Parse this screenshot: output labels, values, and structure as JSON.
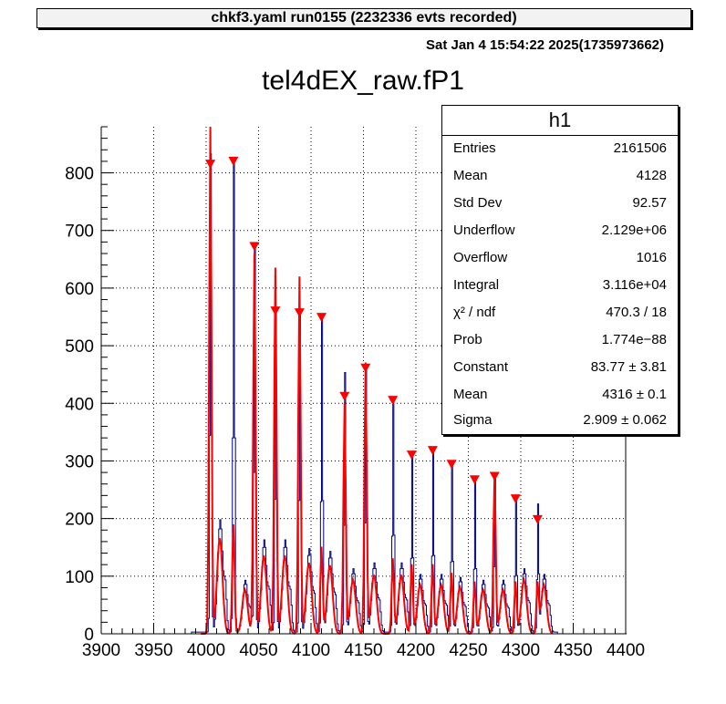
{
  "header": {
    "banner": "chkf3.yaml  run0155 (2232336 evts recorded)",
    "timestamp": "Sat Jan  4 15:54:22 2025(1735973662)"
  },
  "stats": {
    "title": "h1",
    "rows": [
      {
        "label": "Entries",
        "value": "2161506"
      },
      {
        "label": "Mean",
        "value": "4128"
      },
      {
        "label": "Std Dev",
        "value": "92.57"
      },
      {
        "label": "Underflow",
        "value": "2.129e+06"
      },
      {
        "label": "Overflow",
        "value": "1016"
      },
      {
        "label": "Integral",
        "value": "3.116e+04"
      },
      {
        "label": "χ² / ndf",
        "value": "470.3 / 18"
      },
      {
        "label": "Prob",
        "value": "1.774e−88"
      },
      {
        "label": "Constant",
        "value": "83.77   ± 3.81"
      },
      {
        "label": "Mean",
        "value": "4316   ± 0.1"
      },
      {
        "label": "Sigma",
        "value": "2.909   ± 0.062"
      }
    ]
  },
  "chart_data": {
    "type": "line",
    "title": "tel4dEX_raw.fP1",
    "xlabel": "",
    "ylabel": "",
    "xlim": [
      3900,
      4400
    ],
    "ylim": [
      0,
      880
    ],
    "xticks": [
      "3900",
      "3950",
      "4000",
      "4050",
      "4100",
      "4150",
      "4200",
      "4250",
      "4300",
      "4350",
      "4400"
    ],
    "yticks": [
      "0",
      "100",
      "200",
      "300",
      "400",
      "500",
      "600",
      "700",
      "800"
    ],
    "grid": true,
    "colors": {
      "histogram": "#000080",
      "fit": "#ff0000",
      "markers": "#ff0000"
    },
    "peaks": [
      {
        "x": 4004,
        "blue": 830,
        "red": 880,
        "bump_x": 4013,
        "bump": 195
      },
      {
        "x": 4026,
        "blue": 820,
        "red": 190,
        "bump_x": 4037,
        "bump": 90
      },
      {
        "x": 4046,
        "blue": 670,
        "red": 660,
        "bump_x": 4055,
        "bump": 160
      },
      {
        "x": 4066,
        "blue": 560,
        "red": 635,
        "bump_x": 4075,
        "bump": 160
      },
      {
        "x": 4089,
        "blue": 555,
        "red": 620,
        "bump_x": 4098,
        "bump": 145
      },
      {
        "x": 4110,
        "blue": 550,
        "red": 150,
        "bump_x": 4118,
        "bump": 140
      },
      {
        "x": 4132,
        "blue": 450,
        "red": 400,
        "bump_x": 4140,
        "bump": 110
      },
      {
        "x": 4152,
        "blue": 460,
        "red": 470,
        "bump_x": 4160,
        "bump": 120
      },
      {
        "x": 4178,
        "blue": 405,
        "red": 130,
        "bump_x": 4186,
        "bump": 120
      },
      {
        "x": 4196,
        "blue": 310,
        "red": 120,
        "bump_x": 4204,
        "bump": 100
      },
      {
        "x": 4216,
        "blue": 320,
        "red": 120,
        "bump_x": 4224,
        "bump": 100
      },
      {
        "x": 4234,
        "blue": 295,
        "red": 105,
        "bump_x": 4242,
        "bump": 95
      },
      {
        "x": 4256,
        "blue": 265,
        "red": 90,
        "bump_x": 4264,
        "bump": 90
      },
      {
        "x": 4275,
        "blue": 275,
        "red": 275,
        "bump_x": 4283,
        "bump": 90
      },
      {
        "x": 4295,
        "blue": 235,
        "red": 90,
        "bump_x": 4303,
        "bump": 110
      },
      {
        "x": 4316,
        "blue": 218,
        "red": 85,
        "bump_x": 4322,
        "bump": 100
      }
    ],
    "markers": [
      {
        "x": 4004,
        "y": 815
      },
      {
        "x": 4026,
        "y": 820
      },
      {
        "x": 4046,
        "y": 672
      },
      {
        "x": 4066,
        "y": 560
      },
      {
        "x": 4089,
        "y": 557
      },
      {
        "x": 4110,
        "y": 549
      },
      {
        "x": 4132,
        "y": 412
      },
      {
        "x": 4152,
        "y": 461
      },
      {
        "x": 4178,
        "y": 405
      },
      {
        "x": 4196,
        "y": 310
      },
      {
        "x": 4216,
        "y": 318
      },
      {
        "x": 4234,
        "y": 294
      },
      {
        "x": 4256,
        "y": 267
      },
      {
        "x": 4275,
        "y": 273
      },
      {
        "x": 4295,
        "y": 234
      },
      {
        "x": 4316,
        "y": 198
      }
    ]
  }
}
